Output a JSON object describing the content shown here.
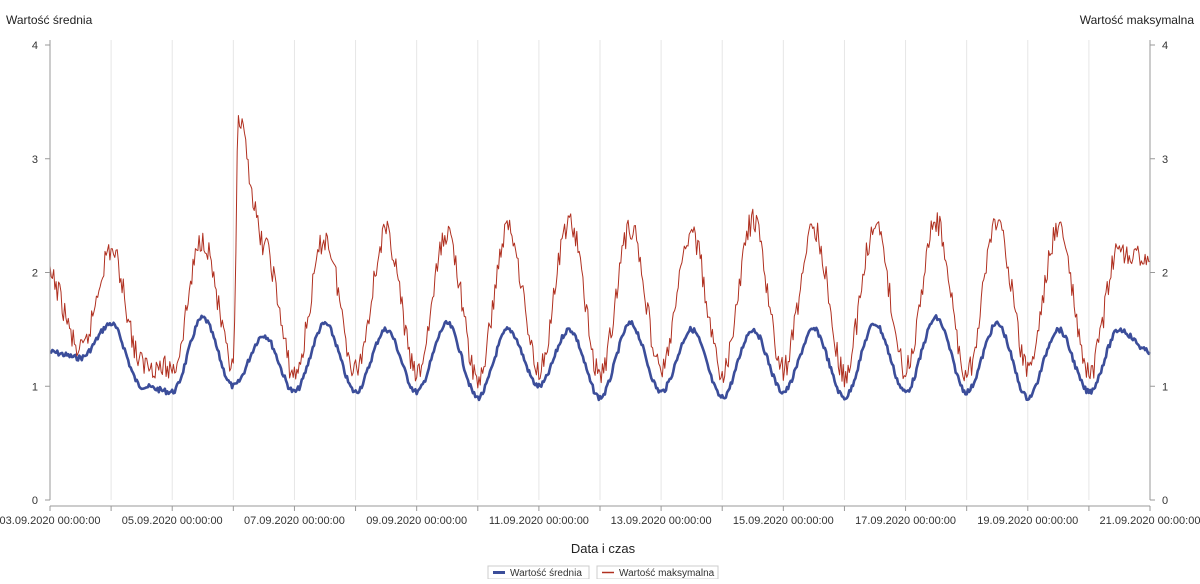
{
  "chart_data": {
    "type": "line",
    "left_axis_label": "Wartość średnia",
    "right_axis_label": "Wartość maksymalna",
    "xlabel": "Data i czas",
    "x_start": "03.09.2020 00:00:00",
    "x_end": "21.09.2020 00:00:00",
    "ylim": [
      0,
      4
    ],
    "y_ticks": [
      "0",
      "1",
      "2",
      "3",
      "4"
    ],
    "x_ticks": [
      "03.09.2020 00:00:00",
      "05.09.2020 00:00:00",
      "07.09.2020 00:00:00",
      "09.09.2020 00:00:00",
      "11.09.2020 00:00:00",
      "13.09.2020 00:00:00",
      "15.09.2020 00:00:00",
      "17.09.2020 00:00:00",
      "19.09.2020 00:00:00",
      "21.09.2020 00:00:00"
    ],
    "grid": true,
    "legend_position": "bottom",
    "series": [
      {
        "name": "Wartość średnia",
        "color": "#3b4d9a",
        "x": [
          "03.09.2020 00:00:00",
          "03.09.2020 12:00:00",
          "04.09.2020 00:00:00",
          "04.09.2020 12:00:00",
          "05.09.2020 00:00:00",
          "05.09.2020 12:00:00",
          "06.09.2020 00:00:00",
          "06.09.2020 12:00:00",
          "07.09.2020 00:00:00",
          "07.09.2020 12:00:00",
          "08.09.2020 00:00:00",
          "08.09.2020 12:00:00",
          "09.09.2020 00:00:00",
          "09.09.2020 12:00:00",
          "10.09.2020 00:00:00",
          "10.09.2020 12:00:00",
          "11.09.2020 00:00:00",
          "11.09.2020 12:00:00",
          "12.09.2020 00:00:00",
          "12.09.2020 12:00:00",
          "13.09.2020 00:00:00",
          "13.09.2020 12:00:00",
          "14.09.2020 00:00:00",
          "14.09.2020 12:00:00",
          "15.09.2020 00:00:00",
          "15.09.2020 12:00:00",
          "16.09.2020 00:00:00",
          "16.09.2020 12:00:00",
          "17.09.2020 00:00:00",
          "17.09.2020 12:00:00",
          "18.09.2020 00:00:00",
          "18.09.2020 12:00:00",
          "19.09.2020 00:00:00",
          "19.09.2020 12:00:00",
          "20.09.2020 00:00:00",
          "20.09.2020 12:00:00",
          "21.09.2020 00:00:00"
        ],
        "values": [
          1.3,
          1.25,
          1.55,
          1.0,
          0.95,
          1.6,
          1.0,
          1.45,
          0.95,
          1.55,
          0.95,
          1.5,
          0.95,
          1.55,
          0.9,
          1.5,
          1.0,
          1.5,
          0.9,
          1.55,
          0.95,
          1.5,
          0.9,
          1.5,
          0.95,
          1.5,
          0.9,
          1.55,
          0.95,
          1.6,
          0.95,
          1.55,
          0.9,
          1.5,
          0.95,
          1.5,
          1.3
        ]
      },
      {
        "name": "Wartość maksymalna",
        "color": "#b03020",
        "x": [
          "03.09.2020 00:00:00",
          "03.09.2020 12:00:00",
          "04.09.2020 00:00:00",
          "04.09.2020 12:00:00",
          "05.09.2020 00:00:00",
          "05.09.2020 12:00:00",
          "06.09.2020 00:00:00",
          "06.09.2020 02:00:00",
          "06.09.2020 12:00:00",
          "07.09.2020 00:00:00",
          "07.09.2020 12:00:00",
          "08.09.2020 00:00:00",
          "08.09.2020 12:00:00",
          "09.09.2020 00:00:00",
          "09.09.2020 12:00:00",
          "10.09.2020 00:00:00",
          "10.09.2020 12:00:00",
          "11.09.2020 00:00:00",
          "11.09.2020 12:00:00",
          "12.09.2020 00:00:00",
          "12.09.2020 12:00:00",
          "13.09.2020 00:00:00",
          "13.09.2020 12:00:00",
          "14.09.2020 00:00:00",
          "14.09.2020 12:00:00",
          "15.09.2020 00:00:00",
          "15.09.2020 12:00:00",
          "16.09.2020 00:00:00",
          "16.09.2020 12:00:00",
          "17.09.2020 00:00:00",
          "17.09.2020 12:00:00",
          "18.09.2020 00:00:00",
          "18.09.2020 12:00:00",
          "19.09.2020 00:00:00",
          "19.09.2020 12:00:00",
          "20.09.2020 00:00:00",
          "20.09.2020 12:00:00",
          "21.09.2020 00:00:00"
        ],
        "values": [
          1.95,
          1.3,
          2.2,
          1.2,
          1.15,
          2.3,
          1.15,
          3.3,
          2.25,
          1.1,
          2.3,
          1.15,
          2.35,
          1.1,
          2.35,
          1.05,
          2.4,
          1.15,
          2.45,
          1.1,
          2.4,
          1.15,
          2.35,
          1.1,
          2.45,
          1.15,
          2.4,
          1.1,
          2.4,
          1.15,
          2.45,
          1.1,
          2.45,
          1.15,
          2.4,
          1.1,
          2.2,
          2.1
        ]
      }
    ]
  }
}
